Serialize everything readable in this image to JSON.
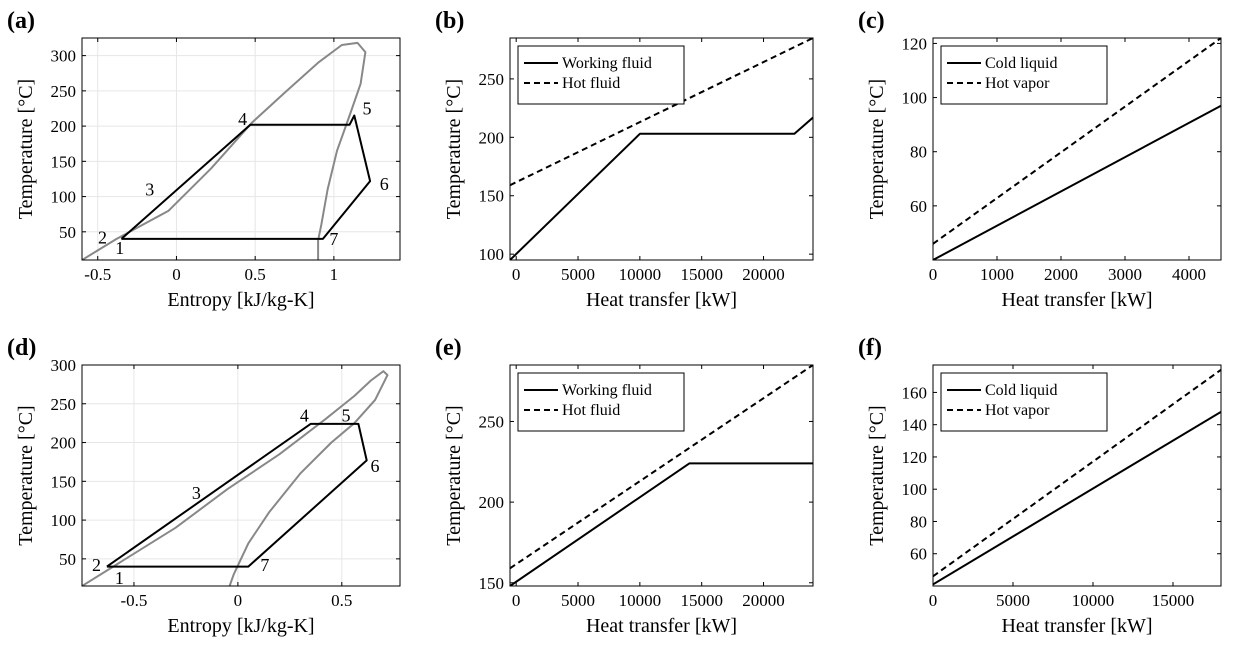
{
  "chart_data": [
    {
      "panel": "(a)",
      "type": "line",
      "xlabel": "Entropy [kJ/kg-K]",
      "ylabel": "Temperature [°C]",
      "xlim": [
        -0.6,
        1.42
      ],
      "ylim": [
        10,
        325
      ],
      "xticks": [
        -0.5,
        0,
        0.5,
        1
      ],
      "xticklabels": [
        "-0.5",
        "0",
        "0.5",
        "1"
      ],
      "yticks": [
        50,
        100,
        150,
        200,
        250,
        300
      ],
      "yticklabels": [
        "50",
        "100",
        "150",
        "200",
        "250",
        "300"
      ],
      "grid": true,
      "series": [
        {
          "role": "dome",
          "color": "#888888",
          "points": [
            [
              -0.6,
              10
            ],
            [
              -0.38,
              40
            ],
            [
              -0.05,
              80
            ],
            [
              0.22,
              140
            ],
            [
              0.48,
              205
            ],
            [
              0.7,
              250
            ],
            [
              0.9,
              290
            ],
            [
              1.05,
              315
            ],
            [
              1.15,
              318
            ],
            [
              1.2,
              305
            ],
            [
              1.17,
              260
            ],
            [
              1.1,
              215
            ],
            [
              1.02,
              165
            ],
            [
              0.96,
              110
            ],
            [
              0.92,
              60
            ],
            [
              0.9,
              38
            ],
            [
              0.9,
              10
            ]
          ]
        },
        {
          "role": "cycle",
          "color": "#000000",
          "points": [
            [
              -0.35,
              40
            ],
            [
              0.47,
              202
            ],
            [
              1.1,
              202
            ],
            [
              1.13,
              215
            ],
            [
              1.23,
              122
            ],
            [
              0.93,
              40
            ],
            [
              -0.35,
              40
            ]
          ]
        }
      ],
      "point_labels": [
        {
          "text": "1",
          "x": -0.36,
          "y": 27
        },
        {
          "text": "2",
          "x": -0.47,
          "y": 42
        },
        {
          "text": "3",
          "x": -0.17,
          "y": 110
        },
        {
          "text": "4",
          "x": 0.42,
          "y": 210
        },
        {
          "text": "5",
          "x": 1.21,
          "y": 225
        },
        {
          "text": "6",
          "x": 1.32,
          "y": 118
        },
        {
          "text": "7",
          "x": 1.0,
          "y": 40
        }
      ]
    },
    {
      "panel": "(b)",
      "type": "line",
      "xlabel": "Heat transfer [kW]",
      "ylabel": "Temperature [°C]",
      "xlim": [
        -500,
        24000
      ],
      "ylim": [
        95,
        285
      ],
      "xticks": [
        0,
        5000,
        10000,
        15000,
        20000
      ],
      "xticklabels": [
        "0",
        "5000",
        "10000",
        "15000",
        "20000"
      ],
      "yticks": [
        100,
        150,
        200,
        250
      ],
      "yticklabels": [
        "100",
        "150",
        "200",
        "250"
      ],
      "grid": false,
      "legend_loc": "top-left",
      "series": [
        {
          "name": "Working fluid",
          "style": "solid",
          "points": [
            [
              -500,
              95
            ],
            [
              10000,
              203
            ],
            [
              22500,
              203
            ],
            [
              24000,
              217
            ]
          ]
        },
        {
          "name": "Hot fluid",
          "style": "dashed",
          "points": [
            [
              -500,
              159
            ],
            [
              24000,
              285
            ]
          ]
        }
      ]
    },
    {
      "panel": "(c)",
      "type": "line",
      "xlabel": "Heat transfer [kW]",
      "ylabel": "Temperature [°C]",
      "xlim": [
        0,
        4500
      ],
      "ylim": [
        40,
        122
      ],
      "xticks": [
        0,
        1000,
        2000,
        3000,
        4000
      ],
      "xticklabels": [
        "0",
        "1000",
        "2000",
        "3000",
        "4000"
      ],
      "yticks": [
        60,
        80,
        100,
        120
      ],
      "yticklabels": [
        "60",
        "80",
        "100",
        "120"
      ],
      "grid": false,
      "legend_loc": "top-left",
      "series": [
        {
          "name": "Cold liquid",
          "style": "solid",
          "points": [
            [
              0,
              40
            ],
            [
              4500,
              97
            ]
          ]
        },
        {
          "name": "Hot vapor",
          "style": "dashed",
          "points": [
            [
              0,
              46
            ],
            [
              4500,
              122
            ]
          ]
        }
      ]
    },
    {
      "panel": "(d)",
      "type": "line",
      "xlabel": "Entropy [kJ/kg-K]",
      "ylabel": "Temperature [°C]",
      "xlim": [
        -0.75,
        0.78
      ],
      "ylim": [
        15,
        300
      ],
      "xticks": [
        -0.5,
        0,
        0.5
      ],
      "xticklabels": [
        "-0.5",
        "0",
        "0.5"
      ],
      "yticks": [
        50,
        100,
        150,
        200,
        250,
        300
      ],
      "yticklabels": [
        "50",
        "100",
        "150",
        "200",
        "250",
        "300"
      ],
      "grid": true,
      "series": [
        {
          "role": "dome",
          "color": "#888888",
          "points": [
            [
              -0.75,
              15
            ],
            [
              -0.6,
              40
            ],
            [
              -0.3,
              90
            ],
            [
              -0.05,
              140
            ],
            [
              0.2,
              185
            ],
            [
              0.42,
              230
            ],
            [
              0.56,
              260
            ],
            [
              0.64,
              280
            ],
            [
              0.7,
              292
            ],
            [
              0.72,
              287
            ],
            [
              0.66,
              255
            ],
            [
              0.56,
              225
            ],
            [
              0.45,
              200
            ],
            [
              0.3,
              160
            ],
            [
              0.15,
              110
            ],
            [
              0.05,
              70
            ],
            [
              -0.02,
              30
            ],
            [
              -0.04,
              15
            ]
          ]
        },
        {
          "role": "cycle",
          "color": "#000000",
          "points": [
            [
              -0.63,
              40
            ],
            [
              0.35,
              224
            ],
            [
              0.58,
              224
            ],
            [
              0.62,
              177
            ],
            [
              0.05,
              40
            ],
            [
              -0.63,
              40
            ]
          ]
        }
      ],
      "point_labels": [
        {
          "text": "1",
          "x": -0.57,
          "y": 25
        },
        {
          "text": "2",
          "x": -0.68,
          "y": 42
        },
        {
          "text": "3",
          "x": -0.2,
          "y": 135
        },
        {
          "text": "4",
          "x": 0.32,
          "y": 235
        },
        {
          "text": "5",
          "x": 0.52,
          "y": 235
        },
        {
          "text": "6",
          "x": 0.66,
          "y": 170
        },
        {
          "text": "7",
          "x": 0.13,
          "y": 42
        }
      ]
    },
    {
      "panel": "(e)",
      "type": "line",
      "xlabel": "Heat transfer [kW]",
      "ylabel": "Temperature [°C]",
      "xlim": [
        -500,
        24000
      ],
      "ylim": [
        148,
        285
      ],
      "xticks": [
        0,
        5000,
        10000,
        15000,
        20000
      ],
      "xticklabels": [
        "0",
        "5000",
        "10000",
        "15000",
        "20000"
      ],
      "yticks": [
        150,
        200,
        250
      ],
      "yticklabels": [
        "150",
        "200",
        "250"
      ],
      "grid": false,
      "legend_loc": "top-left",
      "series": [
        {
          "name": "Working fluid",
          "style": "solid",
          "points": [
            [
              -500,
              148
            ],
            [
              14000,
              224
            ],
            [
              24000,
              224
            ]
          ]
        },
        {
          "name": "Hot fluid",
          "style": "dashed",
          "points": [
            [
              -500,
              159
            ],
            [
              24000,
              285
            ]
          ]
        }
      ]
    },
    {
      "panel": "(f)",
      "type": "line",
      "xlabel": "Heat transfer [kW]",
      "ylabel": "Temperature [°C]",
      "xlim": [
        0,
        18000
      ],
      "ylim": [
        40,
        177
      ],
      "xticks": [
        0,
        5000,
        10000,
        15000
      ],
      "xticklabels": [
        "0",
        "5000",
        "10000",
        "15000"
      ],
      "yticks": [
        60,
        80,
        100,
        120,
        140,
        160
      ],
      "yticklabels": [
        "60",
        "80",
        "100",
        "120",
        "140",
        "160"
      ],
      "grid": false,
      "legend_loc": "top-left",
      "series": [
        {
          "name": "Cold liquid",
          "style": "solid",
          "points": [
            [
              0,
              41
            ],
            [
              18000,
              148
            ]
          ]
        },
        {
          "name": "Hot vapor",
          "style": "dashed",
          "points": [
            [
              0,
              46
            ],
            [
              18000,
              174
            ]
          ]
        }
      ]
    }
  ]
}
